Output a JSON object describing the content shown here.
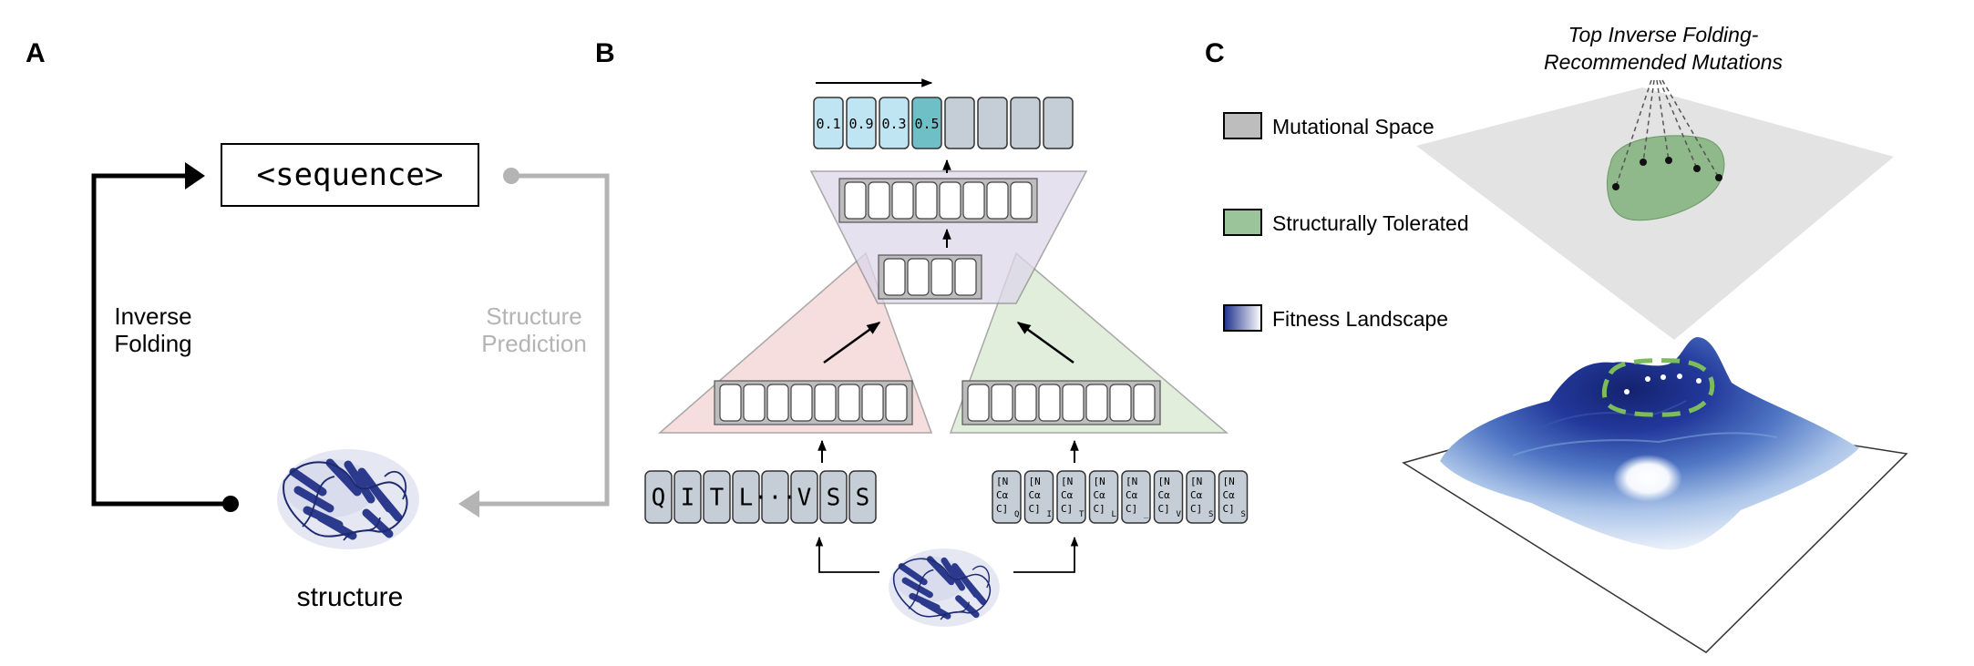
{
  "panels": {
    "a": {
      "letter": "A",
      "sequence_label": "<sequence>",
      "left_arrow_label": [
        "Inverse",
        "Folding"
      ],
      "right_arrow_label": [
        "Structure",
        "Prediction"
      ],
      "structure_label": "structure",
      "colors": {
        "inverse_folding": "#000000",
        "structure_prediction": "#b4b4b4"
      }
    },
    "b": {
      "letter": "B",
      "output_probs": [
        "0.1",
        "0.9",
        "0.3",
        "0.5"
      ],
      "output_unlabeled_count": 4,
      "sequence_tokens": [
        "Q",
        "I",
        "T",
        "L",
        "···",
        "V",
        "S",
        "S"
      ],
      "backbone_tokens": [
        {
          "lines": [
            "[N",
            "Cα",
            "C]"
          ],
          "sub": "Q"
        },
        {
          "lines": [
            "[N",
            "Cα",
            "C]"
          ],
          "sub": "I"
        },
        {
          "lines": [
            "[N",
            "Cα",
            "C]"
          ],
          "sub": "T"
        },
        {
          "lines": [
            "[N",
            "Cα",
            "C]"
          ],
          "sub": "L"
        },
        {
          "lines": [
            "[N",
            "Cα",
            "C]"
          ],
          "sub": "_"
        },
        {
          "lines": [
            "[N",
            "Cα",
            "C]"
          ],
          "sub": "V"
        },
        {
          "lines": [
            "[N",
            "Cα",
            "C]"
          ],
          "sub": "S"
        },
        {
          "lines": [
            "[N",
            "Cα",
            "C]"
          ],
          "sub": "S"
        }
      ],
      "colors": {
        "sequence_encoder": "#f3d3d3",
        "structure_encoder": "#d8e9cf",
        "decoder": "#ddd7ea",
        "token": "#c5ced6",
        "prob_light": "#bfe4f2",
        "prob_selected": "#6fbfc7"
      }
    },
    "c": {
      "letter": "C",
      "title": [
        "Top Inverse Folding-",
        "Recommended Mutations"
      ],
      "legend": [
        {
          "label": "Mutational Space",
          "color": "#bdbdbd"
        },
        {
          "label": "Structurally Tolerated",
          "color": "#9cc49a"
        },
        {
          "label": "Fitness Landscape",
          "color": "#2c3f9e"
        }
      ]
    }
  }
}
